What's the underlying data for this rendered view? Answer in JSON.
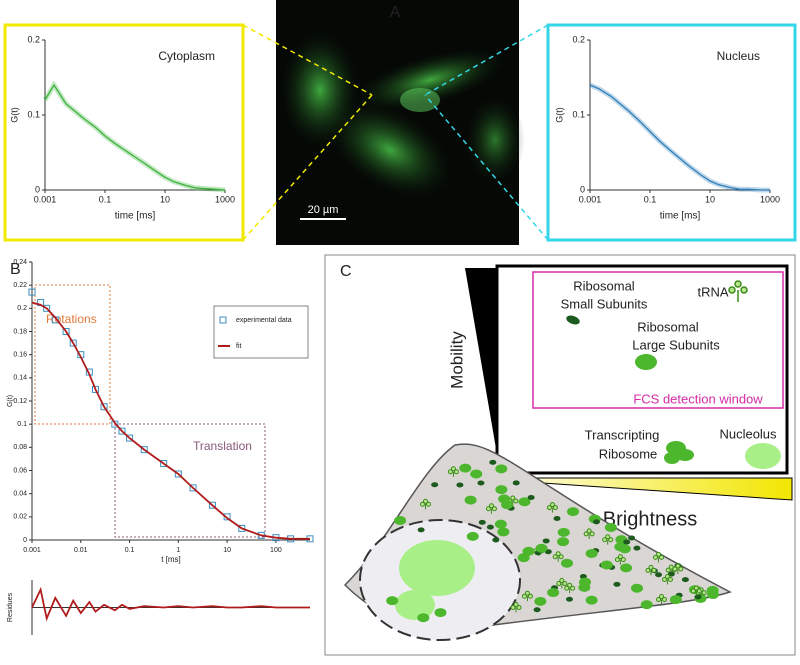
{
  "panel_labels": [
    "A",
    "B",
    "C"
  ],
  "image": {
    "scale_bar": "20 µm"
  },
  "diagram": {
    "mobility": "Mobility",
    "brightness": "Brightness",
    "small_subunits": [
      "Ribosomal",
      "Small Subunits"
    ],
    "trna": "tRNA",
    "large_subunits": [
      "Ribosomal",
      "Large Subunits"
    ],
    "window": "FCS detection window",
    "transcripting": [
      "Transcripting",
      "Ribosome"
    ],
    "nucleolus": "Nucleolus"
  },
  "chart_data": [
    {
      "type": "line",
      "annotation": "Cytoplasm",
      "xlabel": "time [ms]",
      "ylabel": "G(t)",
      "xscale": "log",
      "x": [
        0.001,
        0.002,
        0.005,
        0.01,
        0.02,
        0.05,
        0.1,
        0.2,
        0.5,
        1,
        2,
        5,
        10,
        20,
        50,
        100,
        200,
        500,
        1000
      ],
      "series": [
        {
          "color": "#3cb33c",
          "values": [
            0.12,
            0.14,
            0.115,
            0.105,
            0.095,
            0.083,
            0.072,
            0.063,
            0.052,
            0.044,
            0.036,
            0.025,
            0.017,
            0.011,
            0.006,
            0.003,
            0.002,
            0.001,
            0
          ]
        }
      ],
      "xlim": [
        0.001,
        1000
      ],
      "xticks": [
        0.001,
        0.1,
        10,
        1000
      ],
      "ylim": [
        0,
        0.2
      ],
      "yticks": [
        0,
        0.1,
        0.2
      ]
    },
    {
      "type": "line",
      "annotation": "Nucleus",
      "xlabel": "time [ms]",
      "ylabel": "G(t)",
      "xscale": "log",
      "x": [
        0.001,
        0.002,
        0.005,
        0.01,
        0.02,
        0.05,
        0.1,
        0.2,
        0.5,
        1,
        2,
        5,
        10,
        20,
        50,
        100,
        200,
        500,
        1000
      ],
      "series": [
        {
          "color": "#2f7fb8",
          "values": [
            0.14,
            0.135,
            0.125,
            0.115,
            0.105,
            0.09,
            0.078,
            0.066,
            0.052,
            0.042,
            0.032,
            0.02,
            0.012,
            0.007,
            0.003,
            0.001,
            0.001,
            0,
            0
          ]
        }
      ],
      "xlim": [
        0.001,
        1000
      ],
      "xticks": [
        0.001,
        0.1,
        10,
        1000
      ],
      "ylim": [
        0,
        0.2
      ],
      "yticks": [
        0,
        0.1,
        0.2
      ]
    },
    {
      "type": "line",
      "xlabel": "t [ms]",
      "ylabel": "G(t)",
      "xscale": "log",
      "annotations": [
        "Rotations",
        "Translation"
      ],
      "x": [
        0.001,
        0.0015,
        0.002,
        0.003,
        0.005,
        0.007,
        0.01,
        0.015,
        0.02,
        0.03,
        0.05,
        0.07,
        0.1,
        0.2,
        0.5,
        1,
        2,
        5,
        10,
        20,
        50,
        100,
        200,
        500
      ],
      "series": [
        {
          "name": "experimental data",
          "mark": "square",
          "color": "#3a8fc0",
          "values": [
            0.214,
            0.205,
            0.2,
            0.19,
            0.18,
            0.17,
            0.16,
            0.145,
            0.13,
            0.115,
            0.1,
            0.094,
            0.088,
            0.078,
            0.066,
            0.057,
            0.045,
            0.03,
            0.02,
            0.01,
            0.004,
            0.002,
            0.001,
            0.001
          ]
        },
        {
          "name": "fit",
          "mark": "line",
          "color": "#b01c1c",
          "values": [
            0.205,
            0.203,
            0.2,
            0.192,
            0.18,
            0.17,
            0.158,
            0.143,
            0.13,
            0.115,
            0.101,
            0.094,
            0.088,
            0.078,
            0.066,
            0.057,
            0.045,
            0.03,
            0.019,
            0.01,
            0.004,
            0.002,
            0.001,
            0.001
          ]
        }
      ],
      "xlim": [
        0.001,
        500
      ],
      "xticks": [
        0.001,
        0.01,
        0.1,
        1,
        10,
        100
      ],
      "ylim": [
        0,
        0.24
      ],
      "yticks": [
        0,
        0.02,
        0.04,
        0.06,
        0.08,
        0.1,
        0.12,
        0.14,
        0.16,
        0.18,
        0.2,
        0.22,
        0.24
      ]
    },
    {
      "type": "line",
      "ylabel": "Residues",
      "xscale": "log",
      "x": [
        0.001,
        0.0015,
        0.002,
        0.003,
        0.005,
        0.007,
        0.01,
        0.015,
        0.02,
        0.03,
        0.05,
        0.07,
        0.1,
        0.2,
        0.5,
        1,
        2,
        5,
        10,
        20,
        50,
        100,
        200,
        500
      ],
      "series": [
        {
          "color": "#b01c1c",
          "values": [
            0,
            0.013,
            -0.008,
            0.007,
            -0.006,
            0.005,
            -0.004,
            0.004,
            -0.003,
            0.002,
            -0.002,
            0.002,
            -0.001,
            0.001,
            0,
            0.001,
            0,
            0.001,
            0,
            0,
            0.001,
            0,
            0,
            0
          ]
        }
      ],
      "xlim": [
        0.001,
        500
      ],
      "ylim": [
        -0.02,
        0.02
      ]
    }
  ]
}
